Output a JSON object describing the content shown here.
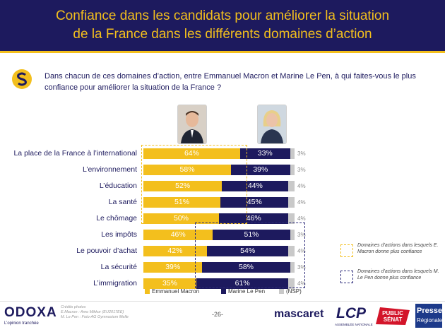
{
  "header": {
    "title_line1": "Confiance dans les candidats pour améliorer la situation",
    "title_line2": "de la France dans les différents domaines d’action"
  },
  "question": "Dans chacun de ces domaines d’action, entre Emmanuel Macron et Marine Le Pen, à qui faites-vous le plus confiance pour améliorer la situation de la France ?",
  "colors": {
    "macron": "#f3bf1d",
    "lepen": "#1d1a5e",
    "nsp": "#c9c9c9",
    "header_bg": "#1d1a5e"
  },
  "chart_data": {
    "type": "bar",
    "orientation": "horizontal-stacked",
    "categories": [
      "La place de la France à l’international",
      "L’environnement",
      "L’éducation",
      "La santé",
      "Le chômage",
      "Les impôts",
      "Le pouvoir d’achat",
      "La sécurité",
      "L’immigration"
    ],
    "series": [
      {
        "name": "Emmanuel Macron",
        "values": [
          64,
          58,
          52,
          51,
          50,
          46,
          42,
          39,
          35
        ]
      },
      {
        "name": "Marine Le Pen",
        "values": [
          33,
          39,
          44,
          45,
          46,
          51,
          54,
          58,
          61
        ]
      },
      {
        "name": "(NSP)",
        "values": [
          3,
          3,
          4,
          4,
          4,
          3,
          4,
          3,
          4
        ]
      }
    ],
    "value_suffix": "%",
    "xlim": [
      0,
      100
    ],
    "legend_position": "bottom"
  },
  "side_notes": {
    "macron": "Domaines d’actions dans lesquels E. Macron donne plus confiance",
    "lepen": "Domaines d’actions dans lesquels M. Le Pen donne plus confiance"
  },
  "footer": {
    "brand": "ODOXA",
    "tagline": "L’opinion tranchée",
    "credits_title": "Crédits photos",
    "credit_1": "E.Macron : Amo Mikkor (EU2017EE)",
    "credit_2": "M. Le Pen : Foto-AG Gymnasium Melle",
    "page": "-26-",
    "logo_mascaret": "mascaret",
    "logo_lcp": "LCP",
    "logo_lcp_sub": "ASSEMBLÉE NATIONALE",
    "logo_ps_1": "PUBLIC",
    "logo_ps_2": "SÉNAT",
    "logo_presse_1": "Presse",
    "logo_presse_2": "Régionale"
  }
}
